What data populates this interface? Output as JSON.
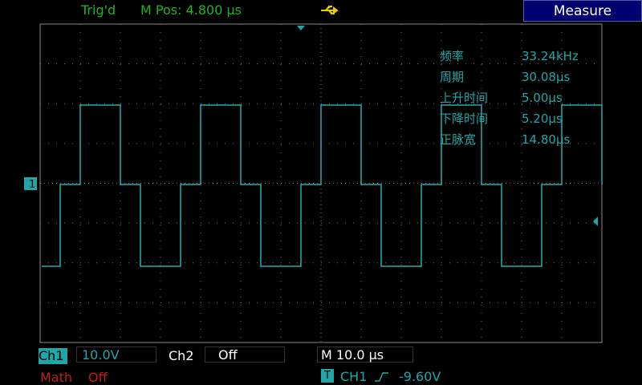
{
  "top_bar": {
    "trigger_status": "Trig'd",
    "m_pos": "M Pos: 4.800 μs",
    "menu_button": "Measure"
  },
  "markers": {
    "ch1": "1"
  },
  "measurements": [
    {
      "label": "频率",
      "value": "33.24kHz"
    },
    {
      "label": "周期",
      "value": "30.08μs"
    },
    {
      "label": "上升时间",
      "value": "5.00μs"
    },
    {
      "label": "下降时间",
      "value": "5.20μs"
    },
    {
      "label": "正脉宽",
      "value": "14.80μs"
    }
  ],
  "bottom_bar": {
    "ch1": {
      "label": "Ch1",
      "scale": "10.0V"
    },
    "ch2": {
      "label": "Ch2",
      "scale": "Off"
    },
    "timebase": "M 10.0 μs",
    "math": {
      "label": "Math",
      "state": "Off"
    },
    "trigger": {
      "icon": "T",
      "source": "CH1",
      "level": "-9.60V"
    }
  }
}
